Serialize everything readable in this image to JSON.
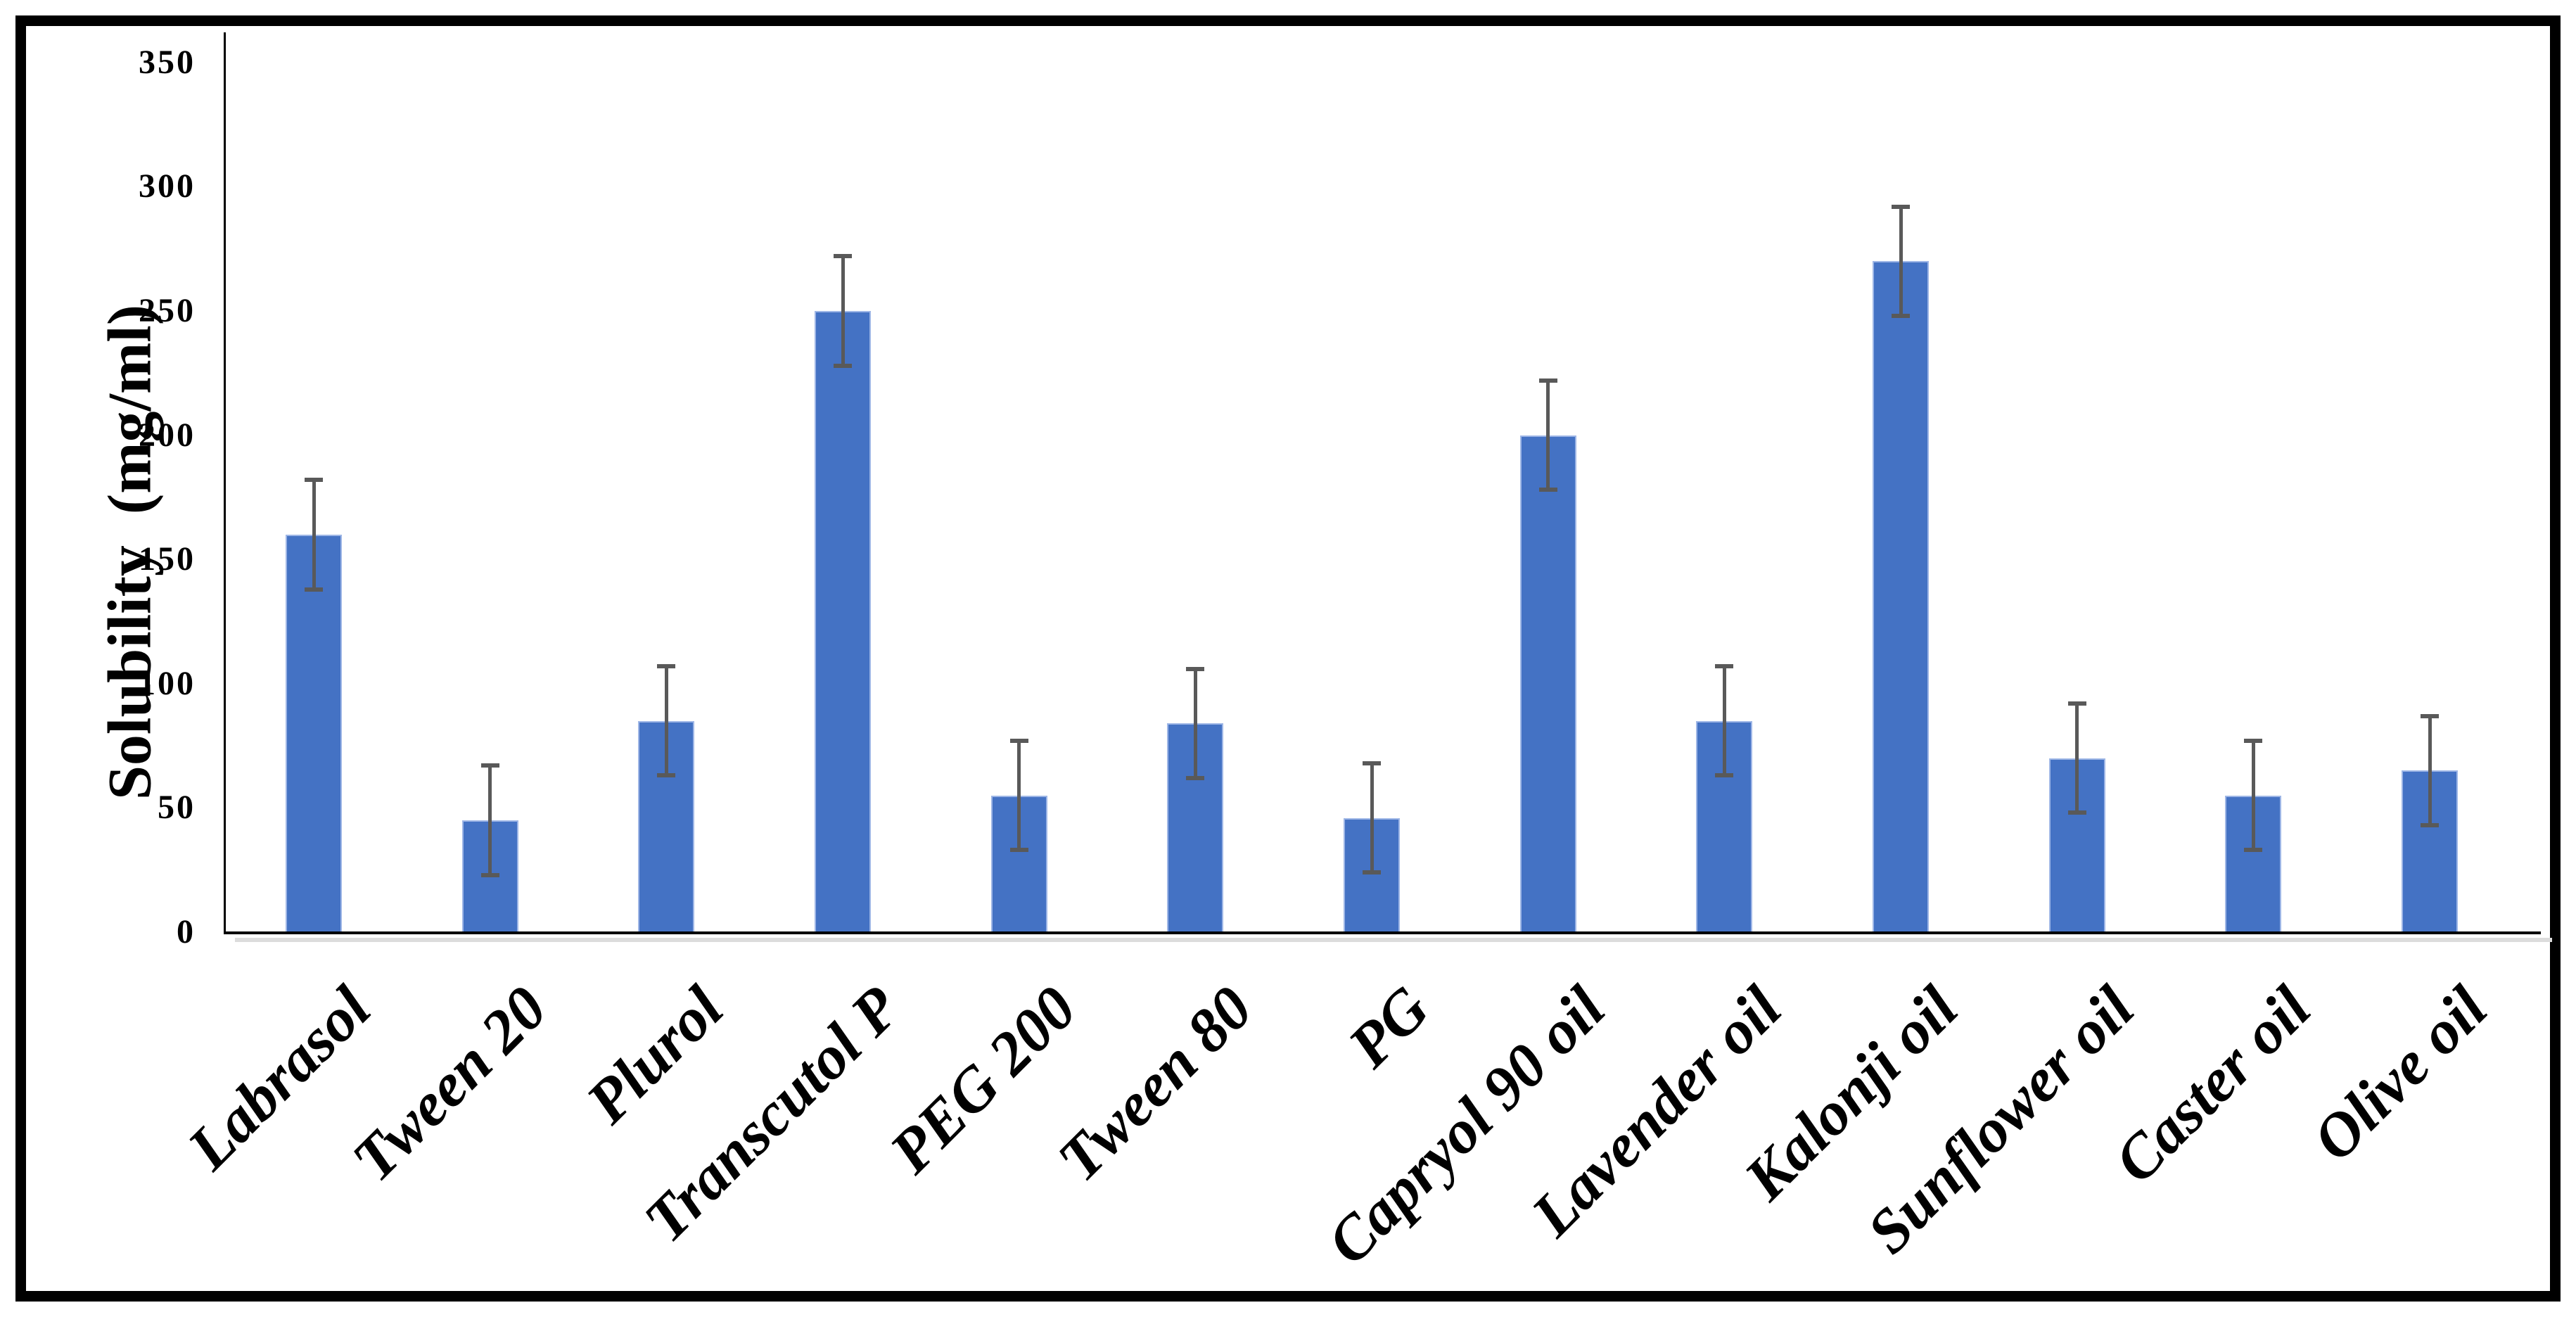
{
  "figure": {
    "background": "#FFFFFF",
    "border_color": "#000000"
  },
  "chart_data": {
    "type": "bar",
    "title": "",
    "xlabel": "",
    "ylabel": "Solubility  (mg/ml)",
    "categories": [
      "Labrasol",
      "Tween 20",
      "Plurol",
      "Transcutol P",
      "PEG 200",
      "Tween 80",
      "PG",
      "Capryol 90 oil",
      "Lavender oil",
      "Kalonji oil",
      "Sunflower oil",
      "Caster oil",
      "Olive oil"
    ],
    "values": [
      160,
      45,
      85,
      250,
      55,
      84,
      46,
      200,
      85,
      270,
      70,
      55,
      65
    ],
    "error_bars": {
      "type": "symmetric",
      "value": 22
    },
    "yticks": [
      0,
      50,
      100,
      150,
      200,
      250,
      300,
      350
    ],
    "ylim": [
      0,
      350
    ],
    "grid": false,
    "legend": "none",
    "bar_color": "#4472C4",
    "bar_edge_color": "#9EB6E6",
    "error_bar_color": "#595959",
    "axis_color": "#000000"
  }
}
